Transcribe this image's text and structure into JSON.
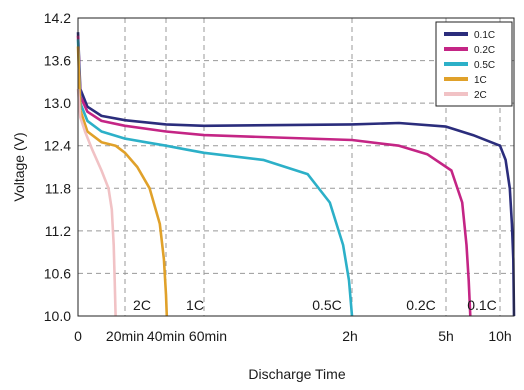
{
  "chart_data": {
    "type": "line",
    "title": "",
    "xlabel": "Discharge Time",
    "ylabel": "Voltage (V)",
    "ylim": [
      10.0,
      14.2
    ],
    "x_ticks": [
      "0",
      "20min",
      "40min",
      "60min",
      "2h",
      "5h",
      "10h"
    ],
    "y_ticks": [
      "14.2",
      "13.6",
      "13.0",
      "12.4",
      "11.8",
      "11.2",
      "10.6",
      "10.0"
    ],
    "grid": true,
    "legend_placement": "top-right",
    "series": [
      {
        "name": "0.1C",
        "color": "#2b2d7c",
        "points": [
          [
            0,
            14.0
          ],
          [
            0.05,
            13.2
          ],
          [
            0.2,
            12.95
          ],
          [
            0.5,
            12.82
          ],
          [
            1.0,
            12.76
          ],
          [
            2,
            12.7
          ],
          [
            3,
            12.68
          ],
          [
            4,
            12.7
          ],
          [
            4.5,
            12.72
          ],
          [
            5,
            12.67
          ],
          [
            5.5,
            12.55
          ],
          [
            6,
            12.4
          ],
          [
            6.4,
            12.2
          ],
          [
            6.7,
            11.8
          ],
          [
            6.85,
            11.3
          ],
          [
            6.95,
            10.8
          ],
          [
            7.0,
            10.0
          ]
        ]
      },
      {
        "name": "0.2C",
        "color": "#c42585",
        "points": [
          [
            0,
            13.95
          ],
          [
            0.05,
            13.1
          ],
          [
            0.2,
            12.88
          ],
          [
            0.5,
            12.75
          ],
          [
            1.0,
            12.68
          ],
          [
            2,
            12.6
          ],
          [
            3,
            12.55
          ],
          [
            4,
            12.48
          ],
          [
            4.5,
            12.4
          ],
          [
            4.8,
            12.28
          ],
          [
            5.1,
            12.05
          ],
          [
            5.3,
            11.6
          ],
          [
            5.38,
            11.0
          ],
          [
            5.42,
            10.5
          ],
          [
            5.45,
            10.0
          ]
        ]
      },
      {
        "name": "0.5C",
        "color": "#2cb0c8",
        "points": [
          [
            0,
            13.9
          ],
          [
            0.05,
            13.0
          ],
          [
            0.2,
            12.75
          ],
          [
            0.5,
            12.6
          ],
          [
            1.0,
            12.5
          ],
          [
            1.5,
            12.45
          ],
          [
            2,
            12.4
          ],
          [
            2.5,
            12.35
          ],
          [
            3,
            12.3
          ],
          [
            3.4,
            12.2
          ],
          [
            3.7,
            12.0
          ],
          [
            3.85,
            11.6
          ],
          [
            3.94,
            11.0
          ],
          [
            3.98,
            10.5
          ],
          [
            4.0,
            10.0
          ]
        ]
      },
      {
        "name": "1C",
        "color": "#e0a12a",
        "points": [
          [
            0,
            13.8
          ],
          [
            0.05,
            12.9
          ],
          [
            0.2,
            12.6
          ],
          [
            0.5,
            12.45
          ],
          [
            0.8,
            12.4
          ],
          [
            1.0,
            12.3
          ],
          [
            1.3,
            12.1
          ],
          [
            1.6,
            11.8
          ],
          [
            1.85,
            11.3
          ],
          [
            1.95,
            10.8
          ],
          [
            2.0,
            10.3
          ],
          [
            2.02,
            10.0
          ]
        ]
      },
      {
        "name": "2C",
        "color": "#f1c2c5",
        "points": [
          [
            0,
            13.2
          ],
          [
            0.05,
            12.8
          ],
          [
            0.15,
            12.6
          ],
          [
            0.3,
            12.35
          ],
          [
            0.5,
            12.05
          ],
          [
            0.65,
            11.8
          ],
          [
            0.72,
            11.5
          ],
          [
            0.76,
            11.0
          ],
          [
            0.78,
            10.5
          ],
          [
            0.8,
            10.0
          ]
        ]
      }
    ],
    "curve_labels": [
      "2C",
      "1C",
      "0.5C",
      "0.2C",
      "0.1C"
    ]
  }
}
